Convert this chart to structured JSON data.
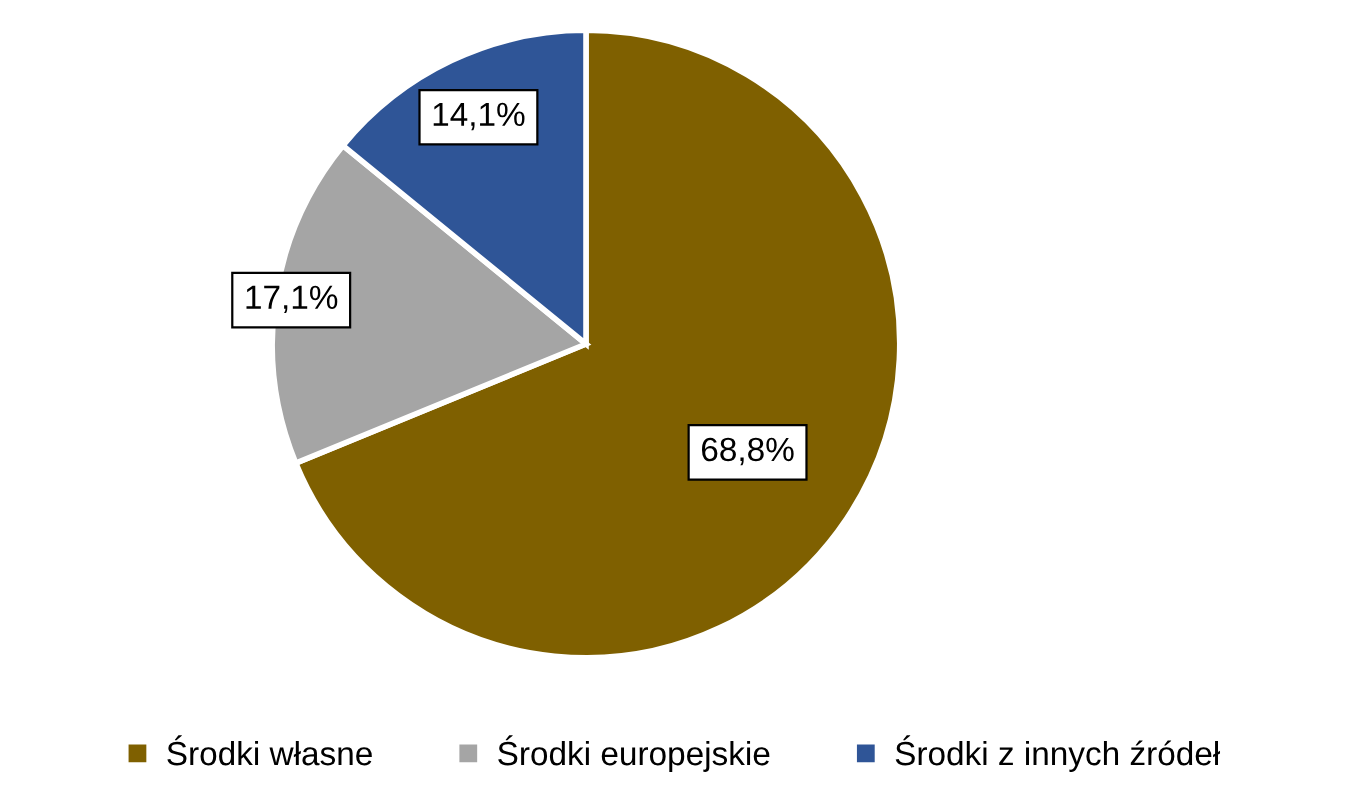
{
  "chart_data": {
    "type": "pie",
    "categories": [
      "Środki własne",
      "Środki europejskie",
      "Środki z innych źródeł"
    ],
    "values": [
      68.8,
      17.1,
      14.1
    ],
    "value_labels": [
      "68,8%",
      "17,1%",
      "14,1%"
    ],
    "colors": [
      "#7f6000",
      "#a5a5a5",
      "#2f5597"
    ],
    "legend": "bottom"
  }
}
